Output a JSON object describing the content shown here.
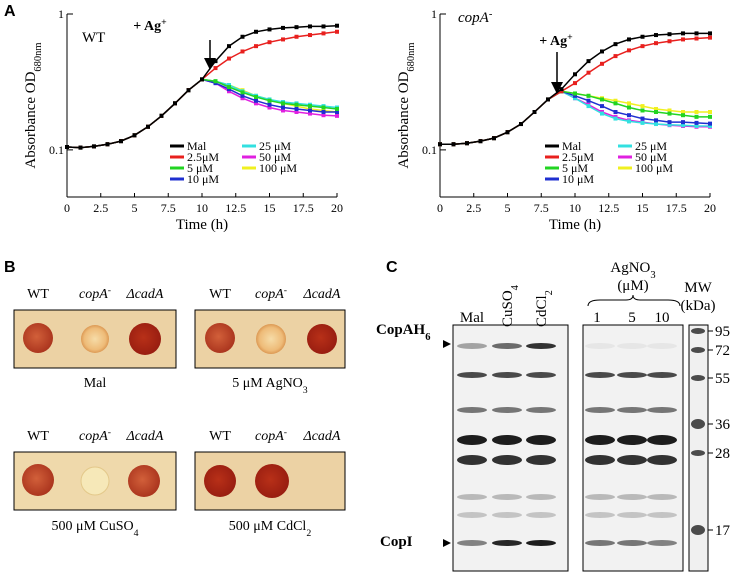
{
  "chart_data": [
    {
      "type": "line",
      "x_label": "Time (h)",
      "y_label": "Absorbance OD",
      "y_label_sub": "680nm",
      "label": "WT",
      "annotation": "+ Ag",
      "annotation_sup": "+",
      "panel": "A",
      "x": [
        0,
        1,
        2,
        3,
        4,
        5,
        6,
        7,
        8,
        9,
        10,
        11,
        12,
        13,
        14,
        15,
        16,
        17,
        18,
        19,
        20
      ],
      "xlim": [
        0,
        20
      ],
      "xticks": [
        0,
        2.5,
        5,
        7.5,
        10,
        12.5,
        15,
        17.5,
        20
      ],
      "ylim": [
        0.045,
        1
      ],
      "yticks": [
        0.1,
        1
      ],
      "log_y": true,
      "series": [
        {
          "name": "Mal",
          "color": "#000000",
          "values": [
            0.105,
            0.104,
            0.106,
            0.11,
            0.116,
            0.128,
            0.148,
            0.178,
            0.22,
            0.275,
            0.33,
            0.45,
            0.58,
            0.68,
            0.74,
            0.77,
            0.79,
            0.8,
            0.81,
            0.81,
            0.82
          ]
        },
        {
          "name": "2.5μM",
          "color": "#e8201e",
          "values": [
            0.105,
            0.104,
            0.106,
            0.11,
            0.116,
            0.128,
            0.148,
            0.178,
            0.22,
            0.275,
            0.33,
            0.4,
            0.47,
            0.53,
            0.58,
            0.62,
            0.65,
            0.68,
            0.7,
            0.72,
            0.74
          ]
        },
        {
          "name": "5 μM",
          "color": "#22d422",
          "values": [
            0.105,
            0.104,
            0.106,
            0.11,
            0.116,
            0.128,
            0.148,
            0.178,
            0.22,
            0.275,
            0.33,
            0.32,
            0.29,
            0.265,
            0.245,
            0.23,
            0.22,
            0.215,
            0.21,
            0.205,
            0.2
          ]
        },
        {
          "name": "10 μM",
          "color": "#1f2fd0",
          "values": [
            0.105,
            0.104,
            0.106,
            0.11,
            0.116,
            0.128,
            0.148,
            0.178,
            0.22,
            0.275,
            0.33,
            0.31,
            0.28,
            0.25,
            0.23,
            0.215,
            0.205,
            0.2,
            0.195,
            0.19,
            0.19
          ]
        },
        {
          "name": "25 μM",
          "color": "#33e0e0",
          "values": [
            0.105,
            0.104,
            0.106,
            0.11,
            0.116,
            0.128,
            0.148,
            0.178,
            0.22,
            0.275,
            0.33,
            0.32,
            0.3,
            0.27,
            0.25,
            0.235,
            0.225,
            0.22,
            0.215,
            0.21,
            0.205
          ]
        },
        {
          "name": "50 μM",
          "color": "#e020e0",
          "values": [
            0.105,
            0.104,
            0.106,
            0.11,
            0.116,
            0.128,
            0.148,
            0.178,
            0.22,
            0.275,
            0.33,
            0.31,
            0.27,
            0.24,
            0.22,
            0.205,
            0.195,
            0.19,
            0.185,
            0.18,
            0.178
          ]
        },
        {
          "name": "100 μM",
          "color": "#f0f020",
          "values": [
            0.105,
            0.104,
            0.106,
            0.11,
            0.116,
            0.128,
            0.148,
            0.178,
            0.22,
            0.275,
            0.33,
            0.32,
            0.3,
            0.275,
            0.25,
            0.235,
            0.22,
            0.21,
            0.2,
            0.195,
            0.19
          ]
        }
      ]
    },
    {
      "type": "line",
      "x_label": "Time (h)",
      "y_label": "Absorbance OD",
      "y_label_sub": "680nm",
      "label": "copA",
      "label_sup": "-",
      "annotation": "+ Ag",
      "annotation_sup": "+",
      "x": [
        0,
        1,
        2,
        3,
        4,
        5,
        6,
        7,
        8,
        9,
        10,
        11,
        12,
        13,
        14,
        15,
        16,
        17,
        18,
        19,
        20
      ],
      "xlim": [
        0,
        20
      ],
      "xticks": [
        0,
        2.5,
        5,
        7.5,
        10,
        12.5,
        15,
        17.5,
        20
      ],
      "ylim": [
        0.045,
        1
      ],
      "yticks": [
        0.1,
        1
      ],
      "log_y": true,
      "series": [
        {
          "name": "Mal",
          "color": "#000000",
          "values": [
            0.11,
            0.11,
            0.112,
            0.116,
            0.122,
            0.135,
            0.155,
            0.19,
            0.235,
            0.28,
            0.36,
            0.45,
            0.53,
            0.6,
            0.65,
            0.68,
            0.7,
            0.71,
            0.72,
            0.72,
            0.72
          ]
        },
        {
          "name": "2.5μM",
          "color": "#e8201e",
          "values": [
            0.11,
            0.11,
            0.112,
            0.116,
            0.122,
            0.135,
            0.155,
            0.19,
            0.235,
            0.27,
            0.31,
            0.37,
            0.43,
            0.49,
            0.54,
            0.58,
            0.61,
            0.63,
            0.65,
            0.66,
            0.67
          ]
        },
        {
          "name": "5 μM",
          "color": "#22d422",
          "values": [
            0.11,
            0.11,
            0.112,
            0.116,
            0.122,
            0.135,
            0.155,
            0.19,
            0.235,
            0.27,
            0.26,
            0.25,
            0.235,
            0.22,
            0.205,
            0.195,
            0.19,
            0.185,
            0.18,
            0.175,
            0.175
          ]
        },
        {
          "name": "10 μM",
          "color": "#1f2fd0",
          "values": [
            0.11,
            0.11,
            0.112,
            0.116,
            0.122,
            0.135,
            0.155,
            0.19,
            0.235,
            0.27,
            0.25,
            0.23,
            0.21,
            0.19,
            0.18,
            0.17,
            0.165,
            0.16,
            0.16,
            0.158,
            0.156
          ]
        },
        {
          "name": "25 μM",
          "color": "#33e0e0",
          "values": [
            0.11,
            0.11,
            0.112,
            0.116,
            0.122,
            0.135,
            0.155,
            0.19,
            0.235,
            0.27,
            0.24,
            0.21,
            0.185,
            0.17,
            0.162,
            0.158,
            0.155,
            0.153,
            0.152,
            0.15,
            0.15
          ]
        },
        {
          "name": "50 μM",
          "color": "#e020e0",
          "values": [
            0.11,
            0.11,
            0.112,
            0.116,
            0.122,
            0.135,
            0.155,
            0.19,
            0.235,
            0.27,
            0.24,
            0.215,
            0.19,
            0.175,
            0.165,
            0.16,
            0.155,
            0.152,
            0.15,
            0.148,
            0.148
          ]
        },
        {
          "name": "100 μM",
          "color": "#f0f020",
          "values": [
            0.11,
            0.11,
            0.112,
            0.116,
            0.122,
            0.135,
            0.155,
            0.19,
            0.235,
            0.27,
            0.26,
            0.25,
            0.24,
            0.23,
            0.22,
            0.21,
            0.2,
            0.195,
            0.19,
            0.19,
            0.19
          ]
        }
      ]
    }
  ],
  "panel_b": {
    "panel": "B",
    "strains": [
      {
        "text": "WT"
      },
      {
        "text": "copA",
        "sup": "-"
      },
      {
        "text": "ΔcadA"
      }
    ],
    "plates": [
      {
        "caption": "Mal"
      },
      {
        "caption": "5 μM AgNO",
        "caption_sub": "3"
      },
      {
        "caption": "500 μM CuSO",
        "caption_sub": "4"
      },
      {
        "caption": "500 μM CdCl",
        "caption_sub": "2"
      }
    ]
  },
  "panel_c": {
    "panel": "C",
    "lanes": [
      {
        "text": "Mal"
      },
      {
        "text": "CuSO",
        "sub": "4"
      },
      {
        "text": "CdCl",
        "sub": "2"
      }
    ],
    "agno3": {
      "text": "AgNO",
      "sub": "3",
      "unit": "(μM)",
      "lanes": [
        "1",
        "5",
        "10"
      ]
    },
    "mw_title": "MW",
    "mw_unit": "(kDa)",
    "mw": [
      "95",
      "72",
      "55",
      "36",
      "28",
      "17"
    ],
    "copah": "CopAH",
    "copah_sub": "6",
    "copi": "CopI"
  }
}
